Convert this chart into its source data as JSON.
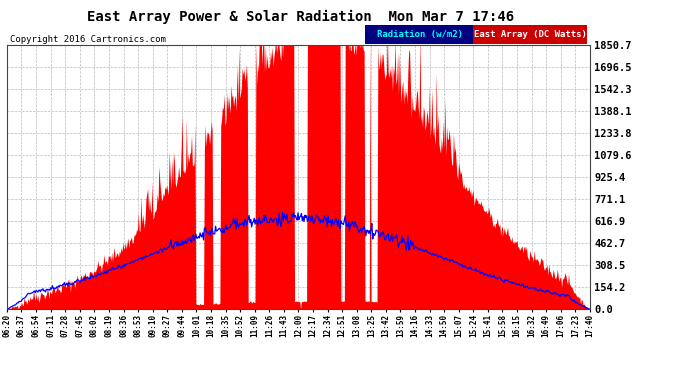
{
  "title": "East Array Power & Solar Radiation  Mon Mar 7 17:46",
  "copyright": "Copyright 2016 Cartronics.com",
  "legend_radiation": "Radiation (w/m2)",
  "legend_east_array": "East Array (DC Watts)",
  "background_color": "#ffffff",
  "plot_bg_color": "#ffffff",
  "grid_color": "#aaaaaa",
  "fill_color": "#ff0000",
  "line_color": "#0000ff",
  "ytick_labels": [
    "0.0",
    "154.2",
    "308.5",
    "462.7",
    "616.9",
    "771.1",
    "925.4",
    "1079.6",
    "1233.8",
    "1388.1",
    "1542.3",
    "1696.5",
    "1850.7"
  ],
  "ytick_values": [
    0.0,
    154.2,
    308.5,
    462.7,
    616.9,
    771.1,
    925.4,
    1079.6,
    1233.8,
    1388.1,
    1542.3,
    1696.5,
    1850.7
  ],
  "ymax": 1850.7,
  "xtick_labels": [
    "06:20",
    "06:37",
    "06:54",
    "07:11",
    "07:28",
    "07:45",
    "08:02",
    "08:19",
    "08:36",
    "08:53",
    "09:10",
    "09:27",
    "09:44",
    "10:01",
    "10:18",
    "10:35",
    "10:52",
    "11:09",
    "11:26",
    "11:43",
    "12:00",
    "12:17",
    "12:34",
    "12:51",
    "13:08",
    "13:25",
    "13:42",
    "13:59",
    "14:16",
    "14:33",
    "14:50",
    "15:07",
    "15:24",
    "15:41",
    "15:58",
    "16:15",
    "16:32",
    "16:49",
    "17:06",
    "17:23",
    "17:40"
  ]
}
